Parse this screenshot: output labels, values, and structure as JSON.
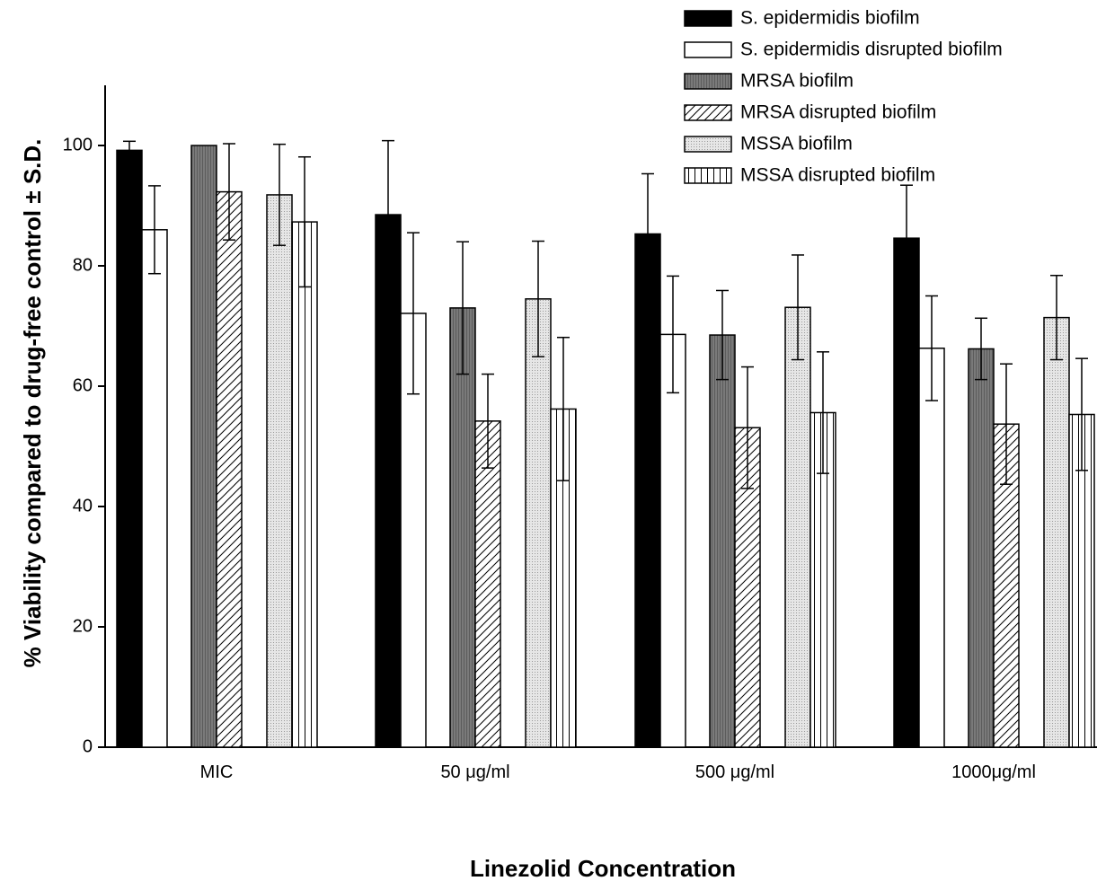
{
  "chart_data": {
    "type": "bar",
    "xlabel": "Linezolid Concentration",
    "ylabel": "% Viability compared to drug-free control ± S.D.",
    "ylim": [
      0,
      110
    ],
    "yticks": [
      0,
      20,
      40,
      60,
      80,
      100
    ],
    "grid": false,
    "legend_position": "top-right",
    "categories": [
      "MIC",
      "50 μg/ml",
      "500 μg/ml",
      "1000μg/ml"
    ],
    "series": [
      {
        "name": "S. epidermidis biofilm",
        "pattern": "solid-black",
        "values": [
          99.2,
          88.5,
          85.3,
          84.6
        ],
        "errors": [
          1.5,
          12.3,
          10.0,
          8.8
        ]
      },
      {
        "name": "S. epidermidis disrupted biofilm",
        "pattern": "white",
        "values": [
          86.0,
          72.1,
          68.6,
          66.3
        ],
        "errors": [
          7.3,
          13.4,
          9.7,
          8.7
        ]
      },
      {
        "name": "MRSA biofilm",
        "pattern": "dark-gray-vertical",
        "values": [
          100.0,
          73.0,
          68.5,
          66.2
        ],
        "errors": [
          0.0,
          11.0,
          7.4,
          5.1
        ]
      },
      {
        "name": "MRSA disrupted biofilm",
        "pattern": "diagonal-hatch",
        "values": [
          92.3,
          54.2,
          53.1,
          53.7
        ],
        "errors": [
          8.0,
          7.8,
          10.1,
          10.0
        ]
      },
      {
        "name": "MSSA biofilm",
        "pattern": "light-gray-dotted",
        "values": [
          91.8,
          74.5,
          73.1,
          71.4
        ],
        "errors": [
          8.4,
          9.6,
          8.7,
          7.0
        ]
      },
      {
        "name": "MSSA disrupted biofilm",
        "pattern": "vertical-lines",
        "values": [
          87.3,
          56.2,
          55.6,
          55.3
        ],
        "errors": [
          10.8,
          11.9,
          10.1,
          9.3
        ]
      }
    ]
  }
}
